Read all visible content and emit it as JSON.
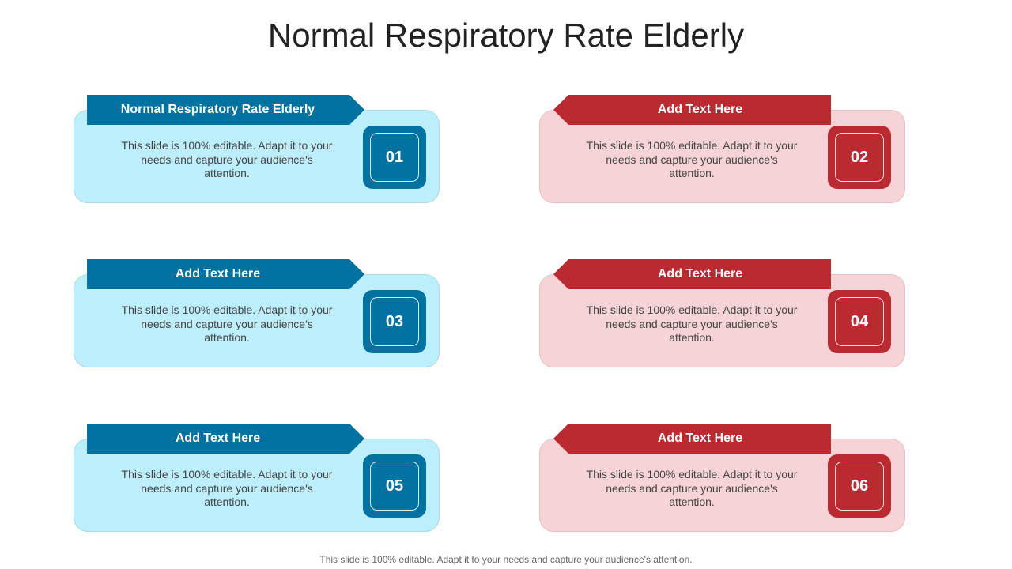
{
  "title": "Normal Respiratory Rate Elderly",
  "items": [
    {
      "heading": "Normal Respiratory Rate Elderly",
      "number": "01",
      "text": "This slide is 100% editable. Adapt it to your needs and capture your audience's attention.",
      "color": "#0072a0"
    },
    {
      "heading": "Add Text Here",
      "number": "02",
      "text": "This slide is 100% editable. Adapt it to your needs and capture your audience's attention.",
      "color": "#bb2a31"
    },
    {
      "heading": "Add Text Here",
      "number": "03",
      "text": "This slide is 100% editable. Adapt it to your needs and capture your audience's attention.",
      "color": "#0072a0"
    },
    {
      "heading": "Add Text Here",
      "number": "04",
      "text": "This slide is 100% editable. Adapt it to your needs and capture your audience's attention.",
      "color": "#bb2a31"
    },
    {
      "heading": "Add Text Here",
      "number": "05",
      "text": "This slide is 100% editable. Adapt it to your needs and capture your audience's attention.",
      "color": "#0072a0"
    },
    {
      "heading": "Add Text Here",
      "number": "06",
      "text": "This slide is 100% editable. Adapt it to your needs and capture your audience's attention.",
      "color": "#bb2a31"
    }
  ],
  "footer": "This slide is 100% editable. Adapt it to your needs and capture your audience's attention."
}
